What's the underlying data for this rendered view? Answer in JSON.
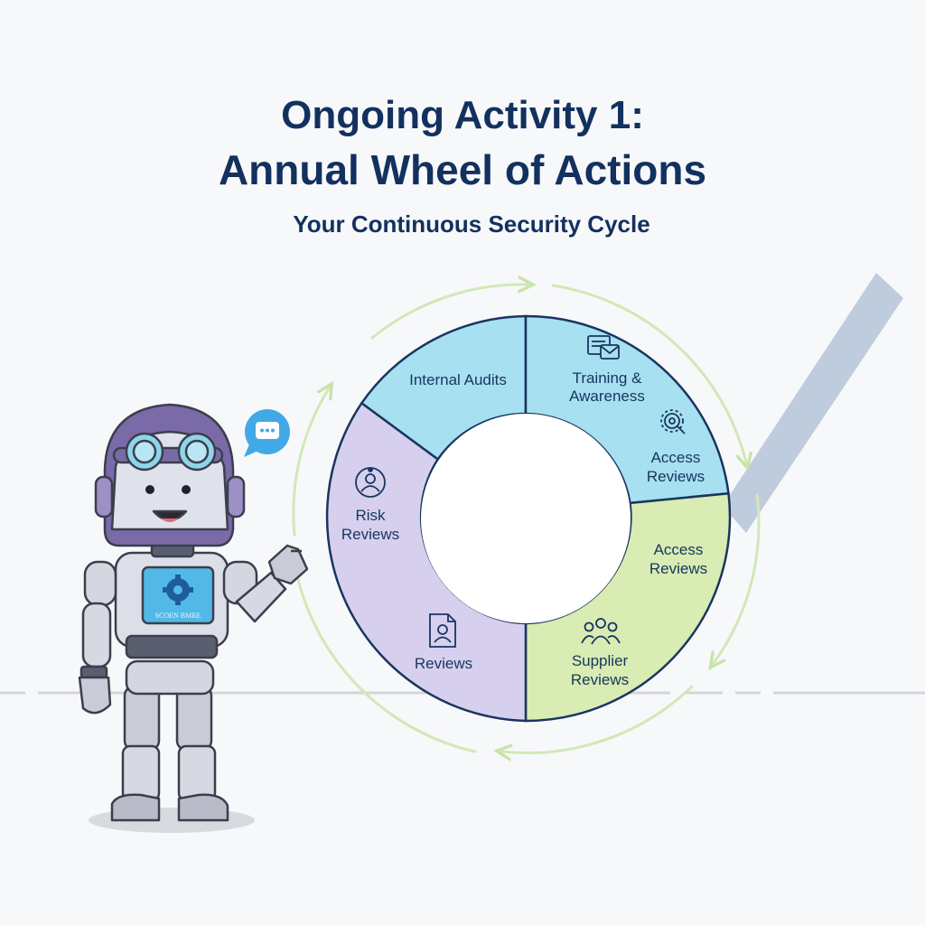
{
  "header": {
    "title_line1": "Ongoing Activity 1:",
    "title_line2": "Annual Wheel of Actions",
    "subtitle": "Your Continuous Security Cycle"
  },
  "wheel": {
    "segments": [
      {
        "id": "internal-audits",
        "label_lines": [
          "Internal Audits"
        ],
        "color": "#a7e0f0"
      },
      {
        "id": "training-awareness",
        "label_lines": [
          "Training &",
          "Awareness"
        ],
        "icon": "envelope-document-icon",
        "color": "#a7e0f0"
      },
      {
        "id": "access-reviews-top",
        "label_lines": [
          "Access",
          "Reviews"
        ],
        "icon": "magnifier-gear-icon",
        "color": "#a7e0f0"
      },
      {
        "id": "access-reviews",
        "label_lines": [
          "Access",
          "Reviews"
        ],
        "color": "#d8ecb3"
      },
      {
        "id": "supplier-reviews",
        "label_lines": [
          "Supplier",
          "Reviews"
        ],
        "icon": "group-icon",
        "color": "#d8ecb3"
      },
      {
        "id": "reviews",
        "label_lines": [
          "Reviews"
        ],
        "icon": "document-user-icon",
        "color": "#d6d0ee"
      },
      {
        "id": "risk-reviews",
        "label_lines": [
          "Risk",
          "Reviews"
        ],
        "icon": "risk-person-icon",
        "color": "#d6d0ee"
      }
    ],
    "cycle_arrow_color": "#cfe5b0",
    "outline_color": "#1a3560"
  },
  "robot": {
    "screen_text": "SCOEN BMRE",
    "screen_icon": "gear-icon",
    "speech_icon": "chat-bubble-icon"
  },
  "decor": {
    "checkmark_color": "#b5c4d8",
    "checkmark_icon": "checkmark-icon"
  }
}
